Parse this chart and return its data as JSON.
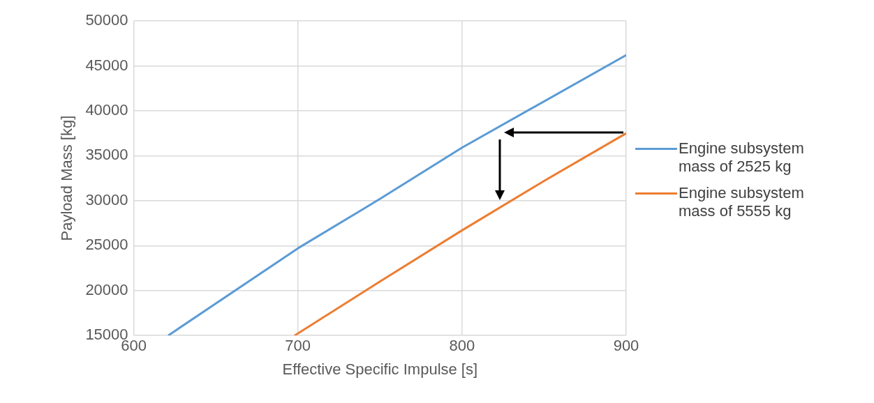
{
  "chart_data": {
    "type": "line",
    "xlabel": "Effective Specific Impulse [s]",
    "ylabel": "Payload Mass [kg]",
    "series": [
      {
        "name": "Engine subsystem mass of 2525 kg",
        "color": "#5b9bd5",
        "x": [
          621,
          700,
          750,
          800,
          900
        ],
        "values": [
          15000,
          24700,
          30200,
          35900,
          46200
        ]
      },
      {
        "name": "Engine subsystem mass of 5555 kg",
        "color": "#ed7d31",
        "x": [
          698,
          750,
          800,
          850,
          900
        ],
        "values": [
          15000,
          21000,
          26700,
          32200,
          37500
        ]
      }
    ],
    "xlim": [
      600,
      900
    ],
    "xticks": [
      600,
      700,
      800,
      900
    ],
    "ylim": [
      15000,
      50000
    ],
    "yticks": [
      15000,
      20000,
      25000,
      30000,
      35000,
      40000,
      45000,
      50000
    ],
    "grid": true,
    "legend": "right",
    "marker": "none",
    "line_style": "solid"
  }
}
